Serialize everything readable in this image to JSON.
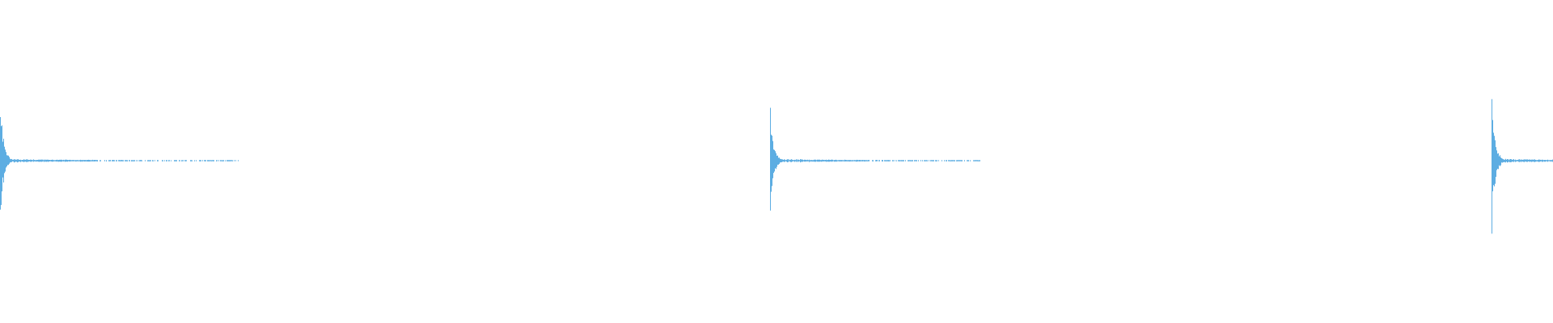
{
  "chart_data": {
    "type": "waveform",
    "axes_visible": false,
    "grid": false,
    "legend": "none",
    "amplitude_range": [
      -1,
      1
    ],
    "color": "#5dade2",
    "background": "#ffffff",
    "transients": [
      {
        "peak_amplitude": 0.42,
        "decay": "fast"
      },
      {
        "peak_amplitude": 0.36,
        "decay": "fast"
      },
      {
        "peak_amplitude": 0.48,
        "decay": "fast"
      }
    ]
  }
}
